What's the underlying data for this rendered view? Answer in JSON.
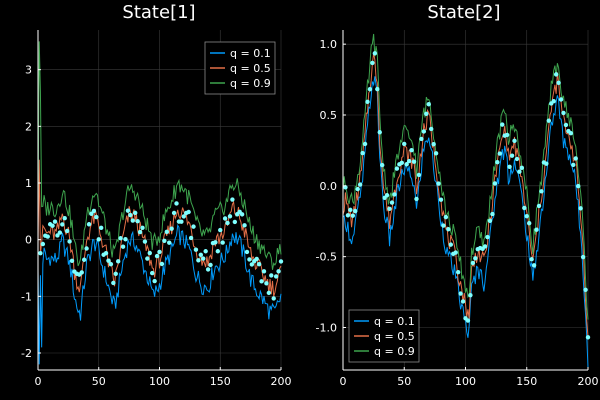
{
  "colors": {
    "background": "#000000",
    "grid": "#3a3a3a",
    "axis": "#ffffff",
    "q01": "#009AFA",
    "q05": "#E36F47",
    "q09": "#3EA44E",
    "points": "#7FFFFF"
  },
  "chart_data": [
    {
      "type": "line",
      "title": "State[1]",
      "xlabel": "",
      "ylabel": "",
      "xlim": [
        0,
        200
      ],
      "ylim": [
        -2.3,
        3.7
      ],
      "xticks": [
        0,
        50,
        100,
        150,
        200
      ],
      "yticks": [
        -2,
        -1,
        0,
        1,
        2,
        3
      ],
      "grid": true,
      "legend": "top-right",
      "series": [
        {
          "name": "q = 0.1",
          "color": "#009AFA"
        },
        {
          "name": "q = 0.5",
          "color": "#E36F47"
        },
        {
          "name": "q = 0.9",
          "color": "#3EA44E"
        }
      ],
      "observations": "scatter",
      "knots_x": [
        0,
        1,
        2,
        3,
        4,
        5,
        6,
        7,
        8,
        10,
        12,
        15,
        18,
        20,
        22,
        25,
        28,
        30,
        33,
        35,
        40,
        45,
        48,
        50,
        55,
        60,
        63,
        65,
        70,
        75,
        80,
        85,
        90,
        95,
        100,
        105,
        110,
        115,
        120,
        125,
        130,
        135,
        140,
        145,
        150,
        155,
        160,
        165,
        170,
        175,
        180,
        185,
        190,
        195,
        200
      ],
      "knots_y": [
        0.05,
        1.55,
        -0.2,
        0.0,
        0.1,
        0.2,
        0.15,
        0.1,
        0.1,
        0.15,
        0.1,
        0.1,
        0.25,
        0.45,
        0.3,
        0.1,
        -0.2,
        -0.55,
        -0.8,
        -0.85,
        0.0,
        0.35,
        0.4,
        0.2,
        -0.15,
        -0.55,
        -0.75,
        -0.55,
        0.05,
        0.45,
        0.4,
        0.1,
        -0.2,
        -0.55,
        -0.35,
        0.0,
        0.25,
        0.55,
        0.45,
        0.25,
        -0.15,
        -0.35,
        -0.4,
        -0.05,
        0.05,
        0.2,
        0.55,
        0.45,
        0.15,
        -0.25,
        -0.45,
        -0.6,
        -0.8,
        -0.85,
        -0.55
      ],
      "offsets_y": {
        "q01": -0.45,
        "q05": 0.0,
        "q09": 0.45
      }
    },
    {
      "type": "line",
      "title": "State[2]",
      "xlabel": "",
      "ylabel": "",
      "xlim": [
        0,
        200
      ],
      "ylim": [
        -1.3,
        1.1
      ],
      "xticks": [
        0,
        50,
        100,
        150,
        200
      ],
      "yticks": [
        -1.0,
        -0.5,
        0.0,
        0.5,
        1.0
      ],
      "grid": true,
      "legend": "bottom-left",
      "series": [
        {
          "name": "q = 0.1",
          "color": "#009AFA"
        },
        {
          "name": "q = 0.5",
          "color": "#E36F47"
        },
        {
          "name": "q = 0.9",
          "color": "#3EA44E"
        }
      ],
      "observations": "scatter",
      "knots_x": [
        0,
        2,
        5,
        8,
        10,
        12,
        15,
        18,
        20,
        23,
        25,
        28,
        30,
        33,
        35,
        38,
        40,
        45,
        50,
        55,
        58,
        60,
        65,
        70,
        75,
        80,
        85,
        90,
        95,
        100,
        103,
        105,
        110,
        115,
        120,
        125,
        130,
        133,
        135,
        140,
        145,
        150,
        155,
        160,
        165,
        170,
        175,
        180,
        185,
        190,
        195,
        198,
        200
      ],
      "knots_y": [
        -0.15,
        -0.1,
        -0.2,
        -0.25,
        -0.15,
        -0.05,
        0.1,
        0.35,
        0.55,
        0.8,
        0.9,
        0.75,
        0.35,
        0.0,
        -0.1,
        -0.25,
        -0.15,
        0.1,
        0.25,
        0.2,
        0.15,
        -0.05,
        0.35,
        0.5,
        0.2,
        -0.1,
        -0.35,
        -0.45,
        -0.65,
        -0.85,
        -0.9,
        -0.6,
        -0.45,
        -0.55,
        -0.25,
        0.1,
        0.35,
        0.4,
        0.2,
        0.3,
        0.1,
        -0.2,
        -0.55,
        -0.2,
        0.15,
        0.55,
        0.75,
        0.45,
        0.35,
        0.15,
        -0.3,
        -0.75,
        -1.1
      ],
      "offsets_y": {
        "q01": -0.13,
        "q05": 0.0,
        "q09": 0.13
      }
    }
  ]
}
